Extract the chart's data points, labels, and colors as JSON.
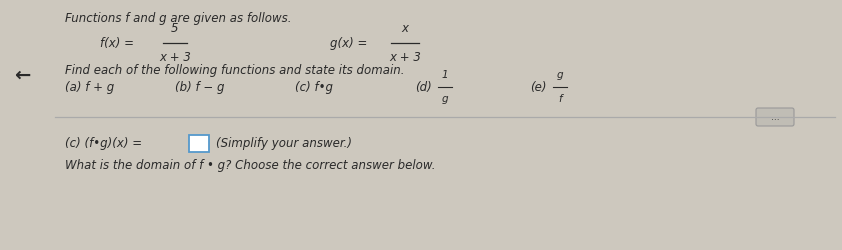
{
  "bg_color": "#cdc8be",
  "title_line": "Functions f and g are given as follows.",
  "f_num": "5",
  "f_den": "x + 3",
  "g_num": "x",
  "g_den": "x + 3",
  "find_line": "Find each of the following functions and state its domain.",
  "bottom_line2": "(Simplify your answer.)",
  "bottom_line3": "What is the domain of f • g? Choose the correct answer below.",
  "arrow_symbol": "←",
  "scroll_label": "...",
  "text_color": "#2a2a2a",
  "divider_color": "#aaaaaa",
  "box_edge_color": "#5599cc",
  "scroll_bg": "#c0bdb5",
  "scroll_edge": "#999999"
}
